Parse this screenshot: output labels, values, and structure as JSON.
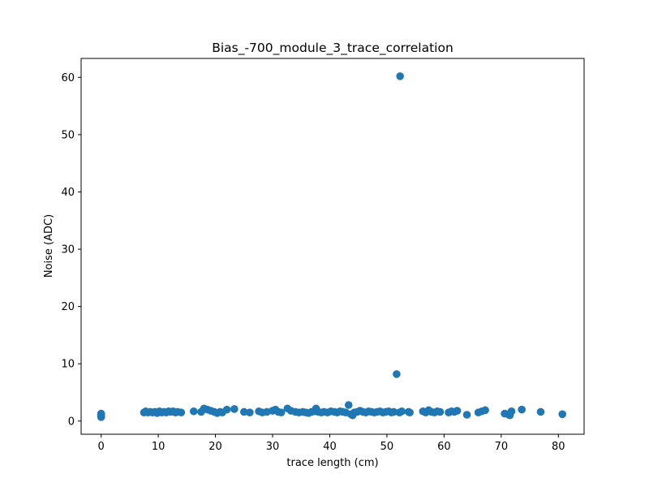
{
  "chart_data": {
    "type": "scatter",
    "title": "Bias_-700_module_3_trace_correlation",
    "xlabel": "trace length (cm)",
    "ylabel": "Noise (ADC)",
    "xlim": [
      -3.5,
      84.5
    ],
    "ylim": [
      -2.3,
      63.3
    ],
    "xticks": [
      0,
      10,
      20,
      30,
      40,
      50,
      60,
      70,
      80
    ],
    "yticks": [
      0,
      10,
      20,
      30,
      40,
      50,
      60
    ],
    "grid": false,
    "legend": "none",
    "marker_color": "#1f77b4",
    "series": [
      {
        "points": [
          [
            0,
            0.7
          ],
          [
            0,
            0.9
          ],
          [
            0,
            1.0
          ],
          [
            0,
            1.1
          ],
          [
            0,
            1.2
          ],
          [
            0,
            1.3
          ],
          [
            0,
            0.8
          ],
          [
            0,
            1.05
          ],
          [
            7.5,
            1.5
          ],
          [
            7.8,
            1.7
          ],
          [
            8.2,
            1.5
          ],
          [
            8.6,
            1.6
          ],
          [
            9.0,
            1.5
          ],
          [
            9.4,
            1.6
          ],
          [
            9.8,
            1.4
          ],
          [
            10.2,
            1.7
          ],
          [
            10.6,
            1.5
          ],
          [
            11.0,
            1.6
          ],
          [
            11.4,
            1.5
          ],
          [
            11.8,
            1.7
          ],
          [
            12.2,
            1.6
          ],
          [
            12.6,
            1.7
          ],
          [
            13.0,
            1.5
          ],
          [
            13.4,
            1.6
          ],
          [
            14.0,
            1.5
          ],
          [
            16.2,
            1.7
          ],
          [
            17.5,
            1.6
          ],
          [
            18.0,
            2.2
          ],
          [
            18.6,
            2.0
          ],
          [
            19.2,
            1.8
          ],
          [
            19.8,
            1.6
          ],
          [
            20.3,
            1.4
          ],
          [
            20.8,
            1.6
          ],
          [
            21.2,
            1.5
          ],
          [
            22.0,
            2.0
          ],
          [
            23.3,
            2.1
          ],
          [
            25.0,
            1.6
          ],
          [
            26.0,
            1.5
          ],
          [
            27.6,
            1.7
          ],
          [
            28.2,
            1.5
          ],
          [
            29.0,
            1.6
          ],
          [
            30.0,
            1.8
          ],
          [
            30.5,
            2.0
          ],
          [
            31.0,
            1.6
          ],
          [
            31.5,
            1.5
          ],
          [
            32.6,
            2.2
          ],
          [
            33.2,
            1.8
          ],
          [
            34.0,
            1.6
          ],
          [
            34.6,
            1.5
          ],
          [
            35.3,
            1.6
          ],
          [
            35.8,
            1.5
          ],
          [
            36.3,
            1.4
          ],
          [
            36.8,
            1.6
          ],
          [
            37.3,
            1.7
          ],
          [
            37.6,
            2.2
          ],
          [
            38.0,
            1.6
          ],
          [
            38.5,
            1.5
          ],
          [
            39.0,
            1.6
          ],
          [
            39.6,
            1.5
          ],
          [
            40.2,
            1.7
          ],
          [
            40.8,
            1.6
          ],
          [
            41.3,
            1.5
          ],
          [
            41.8,
            1.7
          ],
          [
            42.3,
            1.6
          ],
          [
            42.8,
            1.5
          ],
          [
            43.3,
            2.8
          ],
          [
            43.7,
            1.2
          ],
          [
            44.0,
            1.0
          ],
          [
            44.3,
            1.5
          ],
          [
            44.8,
            1.6
          ],
          [
            45.3,
            1.8
          ],
          [
            45.8,
            1.6
          ],
          [
            46.3,
            1.5
          ],
          [
            46.8,
            1.7
          ],
          [
            47.3,
            1.6
          ],
          [
            47.8,
            1.5
          ],
          [
            48.3,
            1.6
          ],
          [
            48.8,
            1.7
          ],
          [
            49.3,
            1.5
          ],
          [
            49.8,
            1.6
          ],
          [
            50.3,
            1.7
          ],
          [
            50.8,
            1.5
          ],
          [
            51.2,
            1.6
          ],
          [
            51.7,
            8.2
          ],
          [
            52.2,
            1.5
          ],
          [
            52.3,
            60.2
          ],
          [
            52.6,
            1.7
          ],
          [
            53.8,
            1.6
          ],
          [
            54.0,
            1.5
          ],
          [
            56.3,
            1.7
          ],
          [
            56.8,
            1.5
          ],
          [
            57.3,
            1.9
          ],
          [
            57.8,
            1.6
          ],
          [
            58.3,
            1.5
          ],
          [
            58.8,
            1.7
          ],
          [
            59.3,
            1.6
          ],
          [
            60.8,
            1.5
          ],
          [
            61.3,
            1.7
          ],
          [
            61.8,
            1.6
          ],
          [
            62.3,
            1.8
          ],
          [
            64.0,
            1.1
          ],
          [
            66.0,
            1.5
          ],
          [
            66.6,
            1.7
          ],
          [
            67.2,
            1.9
          ],
          [
            70.6,
            1.3
          ],
          [
            71.2,
            1.2
          ],
          [
            71.5,
            1.0
          ],
          [
            71.8,
            1.7
          ],
          [
            73.6,
            2.0
          ],
          [
            76.9,
            1.6
          ],
          [
            80.7,
            1.2
          ]
        ]
      }
    ]
  }
}
